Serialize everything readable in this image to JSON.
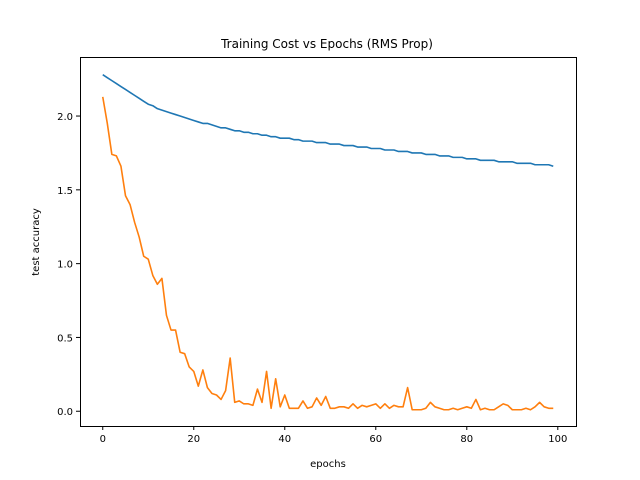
{
  "chart_data": {
    "type": "line",
    "title": "Training Cost vs Epochs (RMS Prop)",
    "xlabel": "epochs",
    "ylabel": "test accuracy",
    "xlim": [
      -5,
      104
    ],
    "ylim": [
      -0.1,
      2.4
    ],
    "xticks": [
      "0",
      "20",
      "40",
      "60",
      "80",
      "100"
    ],
    "yticks": [
      "0.0",
      "0.5",
      "1.0",
      "1.5",
      "2.0"
    ],
    "grid": false,
    "colors": {
      "series_1": "#1f77b4",
      "series_2": "#ff7f0e"
    },
    "series": [
      {
        "values": [
          2.28,
          2.26,
          2.24,
          2.22,
          2.2,
          2.18,
          2.16,
          2.14,
          2.12,
          2.1,
          2.08,
          2.07,
          2.05,
          2.04,
          2.03,
          2.02,
          2.01,
          2.0,
          1.99,
          1.98,
          1.97,
          1.96,
          1.95,
          1.95,
          1.94,
          1.93,
          1.92,
          1.92,
          1.91,
          1.9,
          1.9,
          1.89,
          1.89,
          1.88,
          1.88,
          1.87,
          1.87,
          1.86,
          1.86,
          1.85,
          1.85,
          1.85,
          1.84,
          1.84,
          1.83,
          1.83,
          1.83,
          1.82,
          1.82,
          1.82,
          1.81,
          1.81,
          1.81,
          1.8,
          1.8,
          1.8,
          1.79,
          1.79,
          1.79,
          1.78,
          1.78,
          1.78,
          1.77,
          1.77,
          1.77,
          1.76,
          1.76,
          1.76,
          1.75,
          1.75,
          1.75,
          1.74,
          1.74,
          1.74,
          1.73,
          1.73,
          1.73,
          1.72,
          1.72,
          1.72,
          1.71,
          1.71,
          1.71,
          1.7,
          1.7,
          1.7,
          1.7,
          1.69,
          1.69,
          1.69,
          1.69,
          1.68,
          1.68,
          1.68,
          1.68,
          1.67,
          1.67,
          1.67,
          1.67,
          1.66
        ]
      },
      {
        "values": [
          2.13,
          1.95,
          1.74,
          1.73,
          1.66,
          1.46,
          1.4,
          1.28,
          1.18,
          1.05,
          1.03,
          0.92,
          0.86,
          0.9,
          0.65,
          0.55,
          0.55,
          0.4,
          0.39,
          0.3,
          0.27,
          0.17,
          0.28,
          0.16,
          0.12,
          0.11,
          0.08,
          0.14,
          0.36,
          0.06,
          0.07,
          0.05,
          0.05,
          0.04,
          0.15,
          0.06,
          0.27,
          0.02,
          0.22,
          0.03,
          0.11,
          0.02,
          0.02,
          0.02,
          0.07,
          0.02,
          0.03,
          0.09,
          0.04,
          0.1,
          0.02,
          0.02,
          0.03,
          0.03,
          0.02,
          0.05,
          0.02,
          0.04,
          0.03,
          0.04,
          0.05,
          0.02,
          0.05,
          0.02,
          0.04,
          0.03,
          0.03,
          0.16,
          0.01,
          0.01,
          0.01,
          0.02,
          0.06,
          0.03,
          0.02,
          0.01,
          0.01,
          0.02,
          0.01,
          0.02,
          0.03,
          0.02,
          0.08,
          0.01,
          0.02,
          0.01,
          0.01,
          0.03,
          0.05,
          0.04,
          0.01,
          0.01,
          0.01,
          0.02,
          0.01,
          0.03,
          0.06,
          0.03,
          0.02,
          0.02
        ]
      }
    ]
  }
}
